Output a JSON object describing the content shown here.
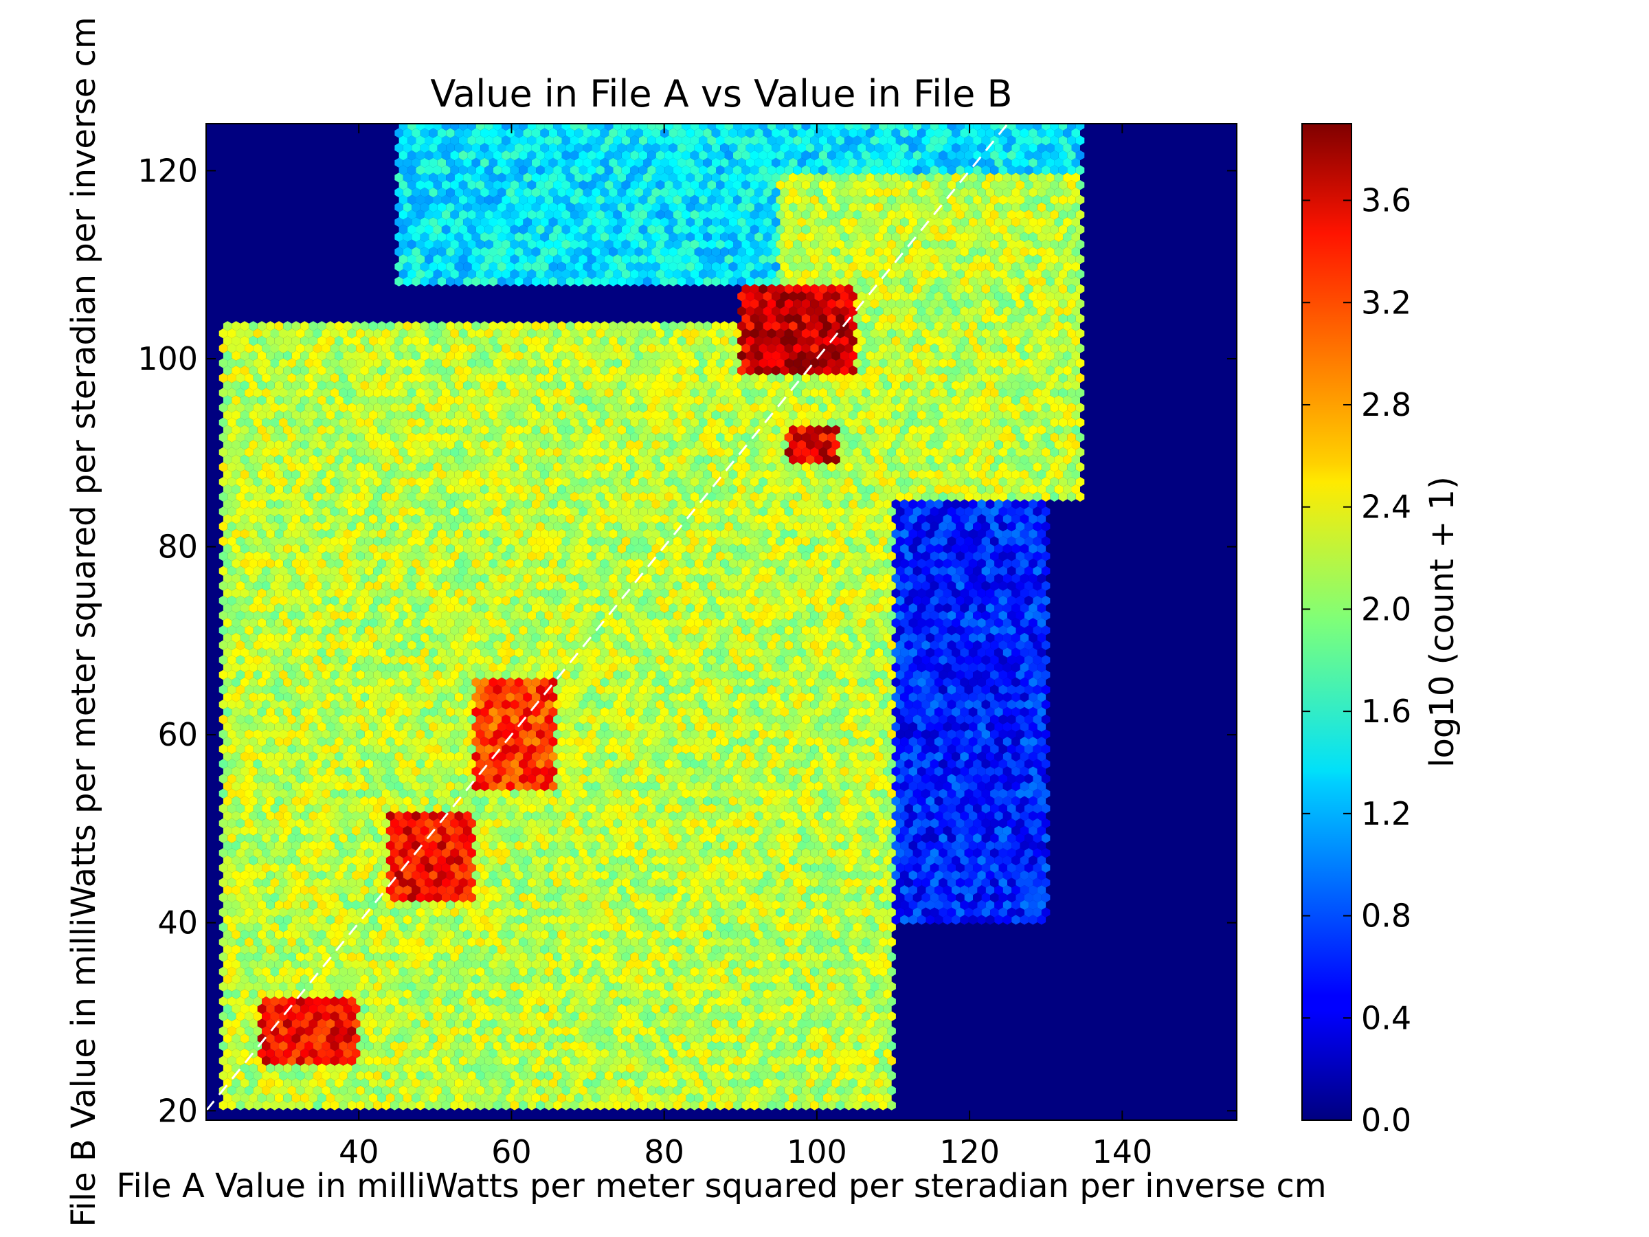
{
  "chart_data": {
    "type": "heatmap",
    "subtype": "hexbin",
    "title": "Value in File A vs Value in File B",
    "xlabel": "File A Value in milliWatts per meter squared per steradian per inverse cm",
    "ylabel": "File B Value in milliWatts per meter squared per steradian per inverse cm",
    "xlim": [
      20,
      155
    ],
    "ylim": [
      19,
      125
    ],
    "xticks": [
      40,
      60,
      80,
      100,
      120,
      140
    ],
    "yticks": [
      20,
      40,
      60,
      80,
      100,
      120
    ],
    "reference_line": {
      "style": "dashed",
      "color": "#ffffff",
      "x": [
        20,
        125
      ],
      "y": [
        20,
        125
      ]
    },
    "colorbar": {
      "label": "log10 (count + 1)",
      "range": [
        0.0,
        3.9
      ],
      "ticks": [
        "0.0",
        "0.4",
        "0.8",
        "1.2",
        "1.6",
        "2.0",
        "2.4",
        "2.8",
        "3.2",
        "3.6"
      ],
      "colormap": "jet"
    },
    "background_color": "#000080",
    "density_regions": [
      {
        "region": "upper band",
        "x": [
          45,
          135
        ],
        "y": [
          108,
          125
        ],
        "value": 1.4
      },
      {
        "region": "main body",
        "x": [
          22,
          110
        ],
        "y": [
          20,
          104
        ],
        "value": 2.2
      },
      {
        "region": "upper-right shoulder",
        "x": [
          95,
          135
        ],
        "y": [
          85,
          120
        ],
        "value": 2.2
      },
      {
        "region": "sparse right tail",
        "x": [
          105,
          130
        ],
        "y": [
          40,
          95
        ],
        "value": 0.6
      },
      {
        "region": "cluster near (32, 28)",
        "x": [
          27,
          40
        ],
        "y": [
          25,
          32
        ],
        "value": 3.4
      },
      {
        "region": "cluster near (48, 46)",
        "x": [
          44,
          55
        ],
        "y": [
          42,
          52
        ],
        "value": 3.4
      },
      {
        "region": "ridge near (60, 60)",
        "x": [
          55,
          66
        ],
        "y": [
          54,
          66
        ],
        "value": 3.2
      },
      {
        "region": "cluster near (97, 102)",
        "x": [
          90,
          105
        ],
        "y": [
          98,
          108
        ],
        "value": 3.6
      },
      {
        "region": "cluster near (100, 91)",
        "x": [
          96,
          103
        ],
        "y": [
          89,
          93
        ],
        "value": 3.5
      }
    ]
  }
}
